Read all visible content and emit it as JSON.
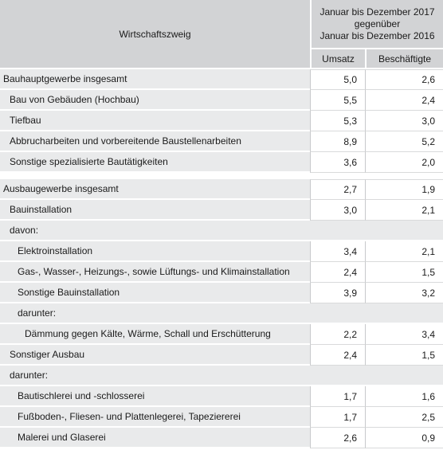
{
  "header": {
    "branch_label": "Wirtschaftszweig",
    "period_line1": "Januar bis Dezember 2017",
    "period_line2": "gegenüber",
    "period_line3": "Januar bis Dezember 2016",
    "col_umsatz": "Umsatz",
    "col_beschaeftigte": "Beschäftigte"
  },
  "groups": [
    {
      "rows": [
        {
          "label": "Bauhauptgewerbe insgesamt",
          "indent": 0,
          "umsatz": "5,0",
          "beschaeftigte": "2,6"
        },
        {
          "label": "Bau von Gebäuden (Hochbau)",
          "indent": 1,
          "umsatz": "5,5",
          "beschaeftigte": "2,4"
        },
        {
          "label": "Tiefbau",
          "indent": 1,
          "umsatz": "5,3",
          "beschaeftigte": "3,0"
        },
        {
          "label": "Abbrucharbeiten und vorbereitende Baustellenarbeiten",
          "indent": 1,
          "umsatz": "8,9",
          "beschaeftigte": "5,2"
        },
        {
          "label": "Sonstige spezialisierte Bautätigkeiten",
          "indent": 1,
          "umsatz": "3,6",
          "beschaeftigte": "2,0"
        }
      ]
    },
    {
      "rows": [
        {
          "label": "Ausbaugewerbe insgesamt",
          "indent": 0,
          "umsatz": "2,7",
          "beschaeftigte": "1,9"
        },
        {
          "label": "Bauinstallation",
          "indent": 1,
          "umsatz": "3,0",
          "beschaeftigte": "2,1"
        },
        {
          "label": "davon:",
          "indent": 1,
          "umsatz": null,
          "beschaeftigte": null
        },
        {
          "label": "Elektroinstallation",
          "indent": 2,
          "umsatz": "3,4",
          "beschaeftigte": "2,1"
        },
        {
          "label": "Gas-, Wasser-, Heizungs-, sowie Lüftungs- und Klimainstallation",
          "indent": 2,
          "umsatz": "2,4",
          "beschaeftigte": "1,5"
        },
        {
          "label": "Sonstige Bauinstallation",
          "indent": 2,
          "umsatz": "3,9",
          "beschaeftigte": "3,2"
        },
        {
          "label": "darunter:",
          "indent": 2,
          "umsatz": null,
          "beschaeftigte": null
        },
        {
          "label": "Dämmung gegen Kälte, Wärme, Schall und Erschütterung",
          "indent": 3,
          "umsatz": "2,2",
          "beschaeftigte": "3,4"
        },
        {
          "label": "Sonstiger Ausbau",
          "indent": 1,
          "umsatz": "2,4",
          "beschaeftigte": "1,5"
        },
        {
          "label": "darunter:",
          "indent": 1,
          "umsatz": null,
          "beschaeftigte": null
        },
        {
          "label": "Bautischlerei und -schlosserei",
          "indent": 2,
          "umsatz": "1,7",
          "beschaeftigte": "1,6"
        },
        {
          "label": "Fußboden-, Fliesen- und Plattenlegerei, Tapeziererei",
          "indent": 2,
          "umsatz": "1,7",
          "beschaeftigte": "2,5"
        },
        {
          "label": "Malerei und Glaserei",
          "indent": 2,
          "umsatz": "2,6",
          "beschaeftigte": "0,9"
        }
      ]
    }
  ]
}
